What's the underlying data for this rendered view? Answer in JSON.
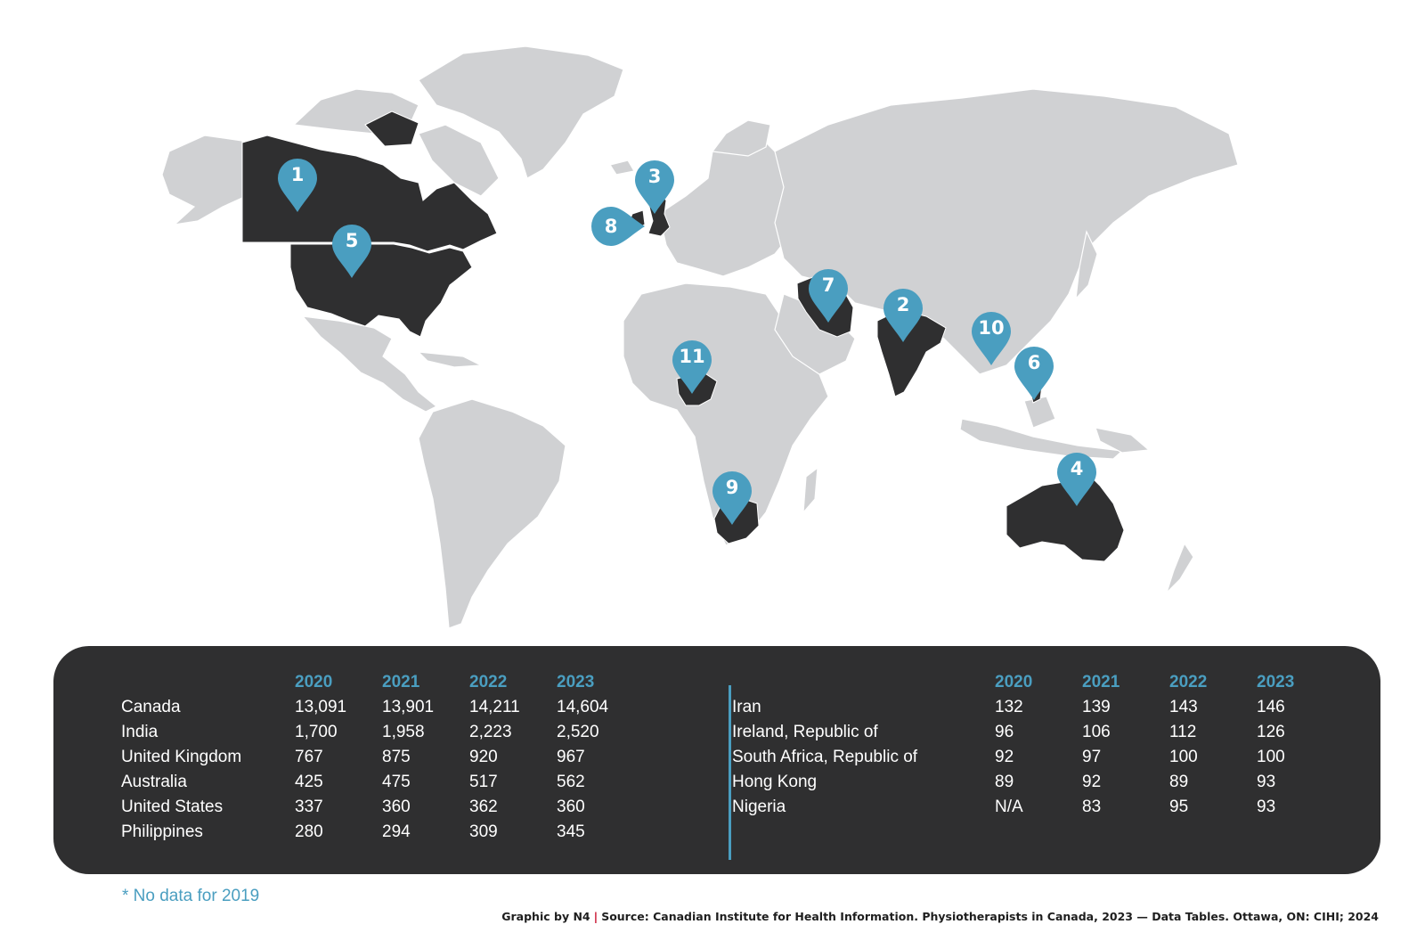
{
  "colors": {
    "land": "#d0d1d3",
    "highlight": "#2f2f30",
    "accent": "#4a9ec0",
    "panel": "#2f2f30",
    "credit_separator": "#c8102e"
  },
  "markers": [
    {
      "number": "1",
      "country": "Canada"
    },
    {
      "number": "2",
      "country": "India"
    },
    {
      "number": "3",
      "country": "United Kingdom"
    },
    {
      "number": "4",
      "country": "Australia"
    },
    {
      "number": "5",
      "country": "United States"
    },
    {
      "number": "6",
      "country": "Philippines"
    },
    {
      "number": "7",
      "country": "Iran"
    },
    {
      "number": "8",
      "country": "Ireland, Republic of"
    },
    {
      "number": "9",
      "country": "South Africa, Republic of"
    },
    {
      "number": "10",
      "country": "Hong Kong"
    },
    {
      "number": "11",
      "country": "Nigeria"
    }
  ],
  "table": {
    "years": [
      "2020",
      "2021",
      "2022",
      "2023"
    ],
    "left": [
      {
        "country": "Canada",
        "values": [
          "13,091",
          "13,901",
          "14,211",
          "14,604"
        ]
      },
      {
        "country": "India",
        "values": [
          "1,700",
          "1,958",
          "2,223",
          "2,520"
        ]
      },
      {
        "country": "United Kingdom",
        "values": [
          "767",
          "875",
          "920",
          "967"
        ]
      },
      {
        "country": "Australia",
        "values": [
          "425",
          "475",
          "517",
          "562"
        ]
      },
      {
        "country": "United States",
        "values": [
          "337",
          "360",
          "362",
          "360"
        ]
      },
      {
        "country": "Philippines",
        "values": [
          "280",
          "294",
          "309",
          "345"
        ]
      }
    ],
    "right": [
      {
        "country": "Iran",
        "values": [
          "132",
          "139",
          "143",
          "146"
        ]
      },
      {
        "country": "Ireland, Republic of",
        "values": [
          "96",
          "106",
          "112",
          "126"
        ]
      },
      {
        "country": "South Africa, Republic of",
        "values": [
          "92",
          "97",
          "100",
          "100"
        ]
      },
      {
        "country": "Hong Kong",
        "values": [
          "89",
          "92",
          "89",
          "93"
        ]
      },
      {
        "country": "Nigeria",
        "values": [
          "N/A",
          "83",
          "95",
          "93"
        ]
      }
    ]
  },
  "footnote": "* No data for 2019",
  "credit": {
    "by": "Graphic by N4",
    "separator": "|",
    "source": "Source: Canadian Institute for Health Information. Physiotherapists in Canada, 2023 — Data Tables. Ottawa, ON: CIHI; 2024"
  }
}
